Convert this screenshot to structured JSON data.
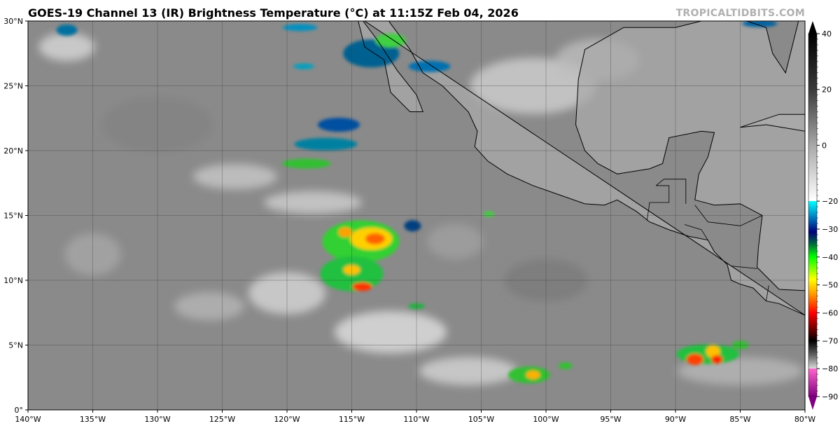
{
  "header": {
    "title": "GOES-19 Channel 13 (IR) Brightness Temperature (°C) at 11:15Z Feb 04, 2026",
    "credit": "TROPICALTIDBITS.COM"
  },
  "map": {
    "lon_labels": [
      "140°W",
      "135°W",
      "130°W",
      "125°W",
      "120°W",
      "115°W",
      "110°W",
      "105°W",
      "100°W",
      "95°W",
      "90°W",
      "85°W",
      "80°W"
    ],
    "lat_labels": [
      "0°",
      "5°N",
      "10°N",
      "15°N",
      "20°N",
      "25°N",
      "30°N"
    ],
    "extent": {
      "lon": [
        -140,
        -80
      ],
      "lat": [
        0,
        30
      ]
    }
  },
  "colorbar": {
    "unit": "°C",
    "range": [
      -90,
      40
    ],
    "tick_labels": [
      "40",
      "20",
      "0",
      "−20",
      "−30",
      "−40",
      "−50",
      "−60",
      "−70",
      "−80",
      "−90"
    ],
    "tick_values": [
      40,
      20,
      0,
      -20,
      -30,
      -40,
      -50,
      -60,
      -70,
      -80,
      -90
    ],
    "stops": [
      {
        "t": 40,
        "c": "#000000"
      },
      {
        "t": 20,
        "c": "#3a3a3a"
      },
      {
        "t": 0,
        "c": "#a8a8a8"
      },
      {
        "t": -19.9,
        "c": "#ffffff"
      },
      {
        "t": -20,
        "c": "#00ffff"
      },
      {
        "t": -27,
        "c": "#0060b0"
      },
      {
        "t": -31,
        "c": "#00007a"
      },
      {
        "t": -35,
        "c": "#006040"
      },
      {
        "t": -40,
        "c": "#00ff00"
      },
      {
        "t": -48,
        "c": "#ffff00"
      },
      {
        "t": -53,
        "c": "#ffa000"
      },
      {
        "t": -60,
        "c": "#ff0000"
      },
      {
        "t": -67,
        "c": "#500000"
      },
      {
        "t": -70,
        "c": "#000000"
      },
      {
        "t": -75,
        "c": "#606060"
      },
      {
        "t": -79.9,
        "c": "#d8d8d8"
      },
      {
        "t": -80,
        "c": "#ff66cc"
      },
      {
        "t": -90,
        "c": "#800080"
      }
    ]
  }
}
